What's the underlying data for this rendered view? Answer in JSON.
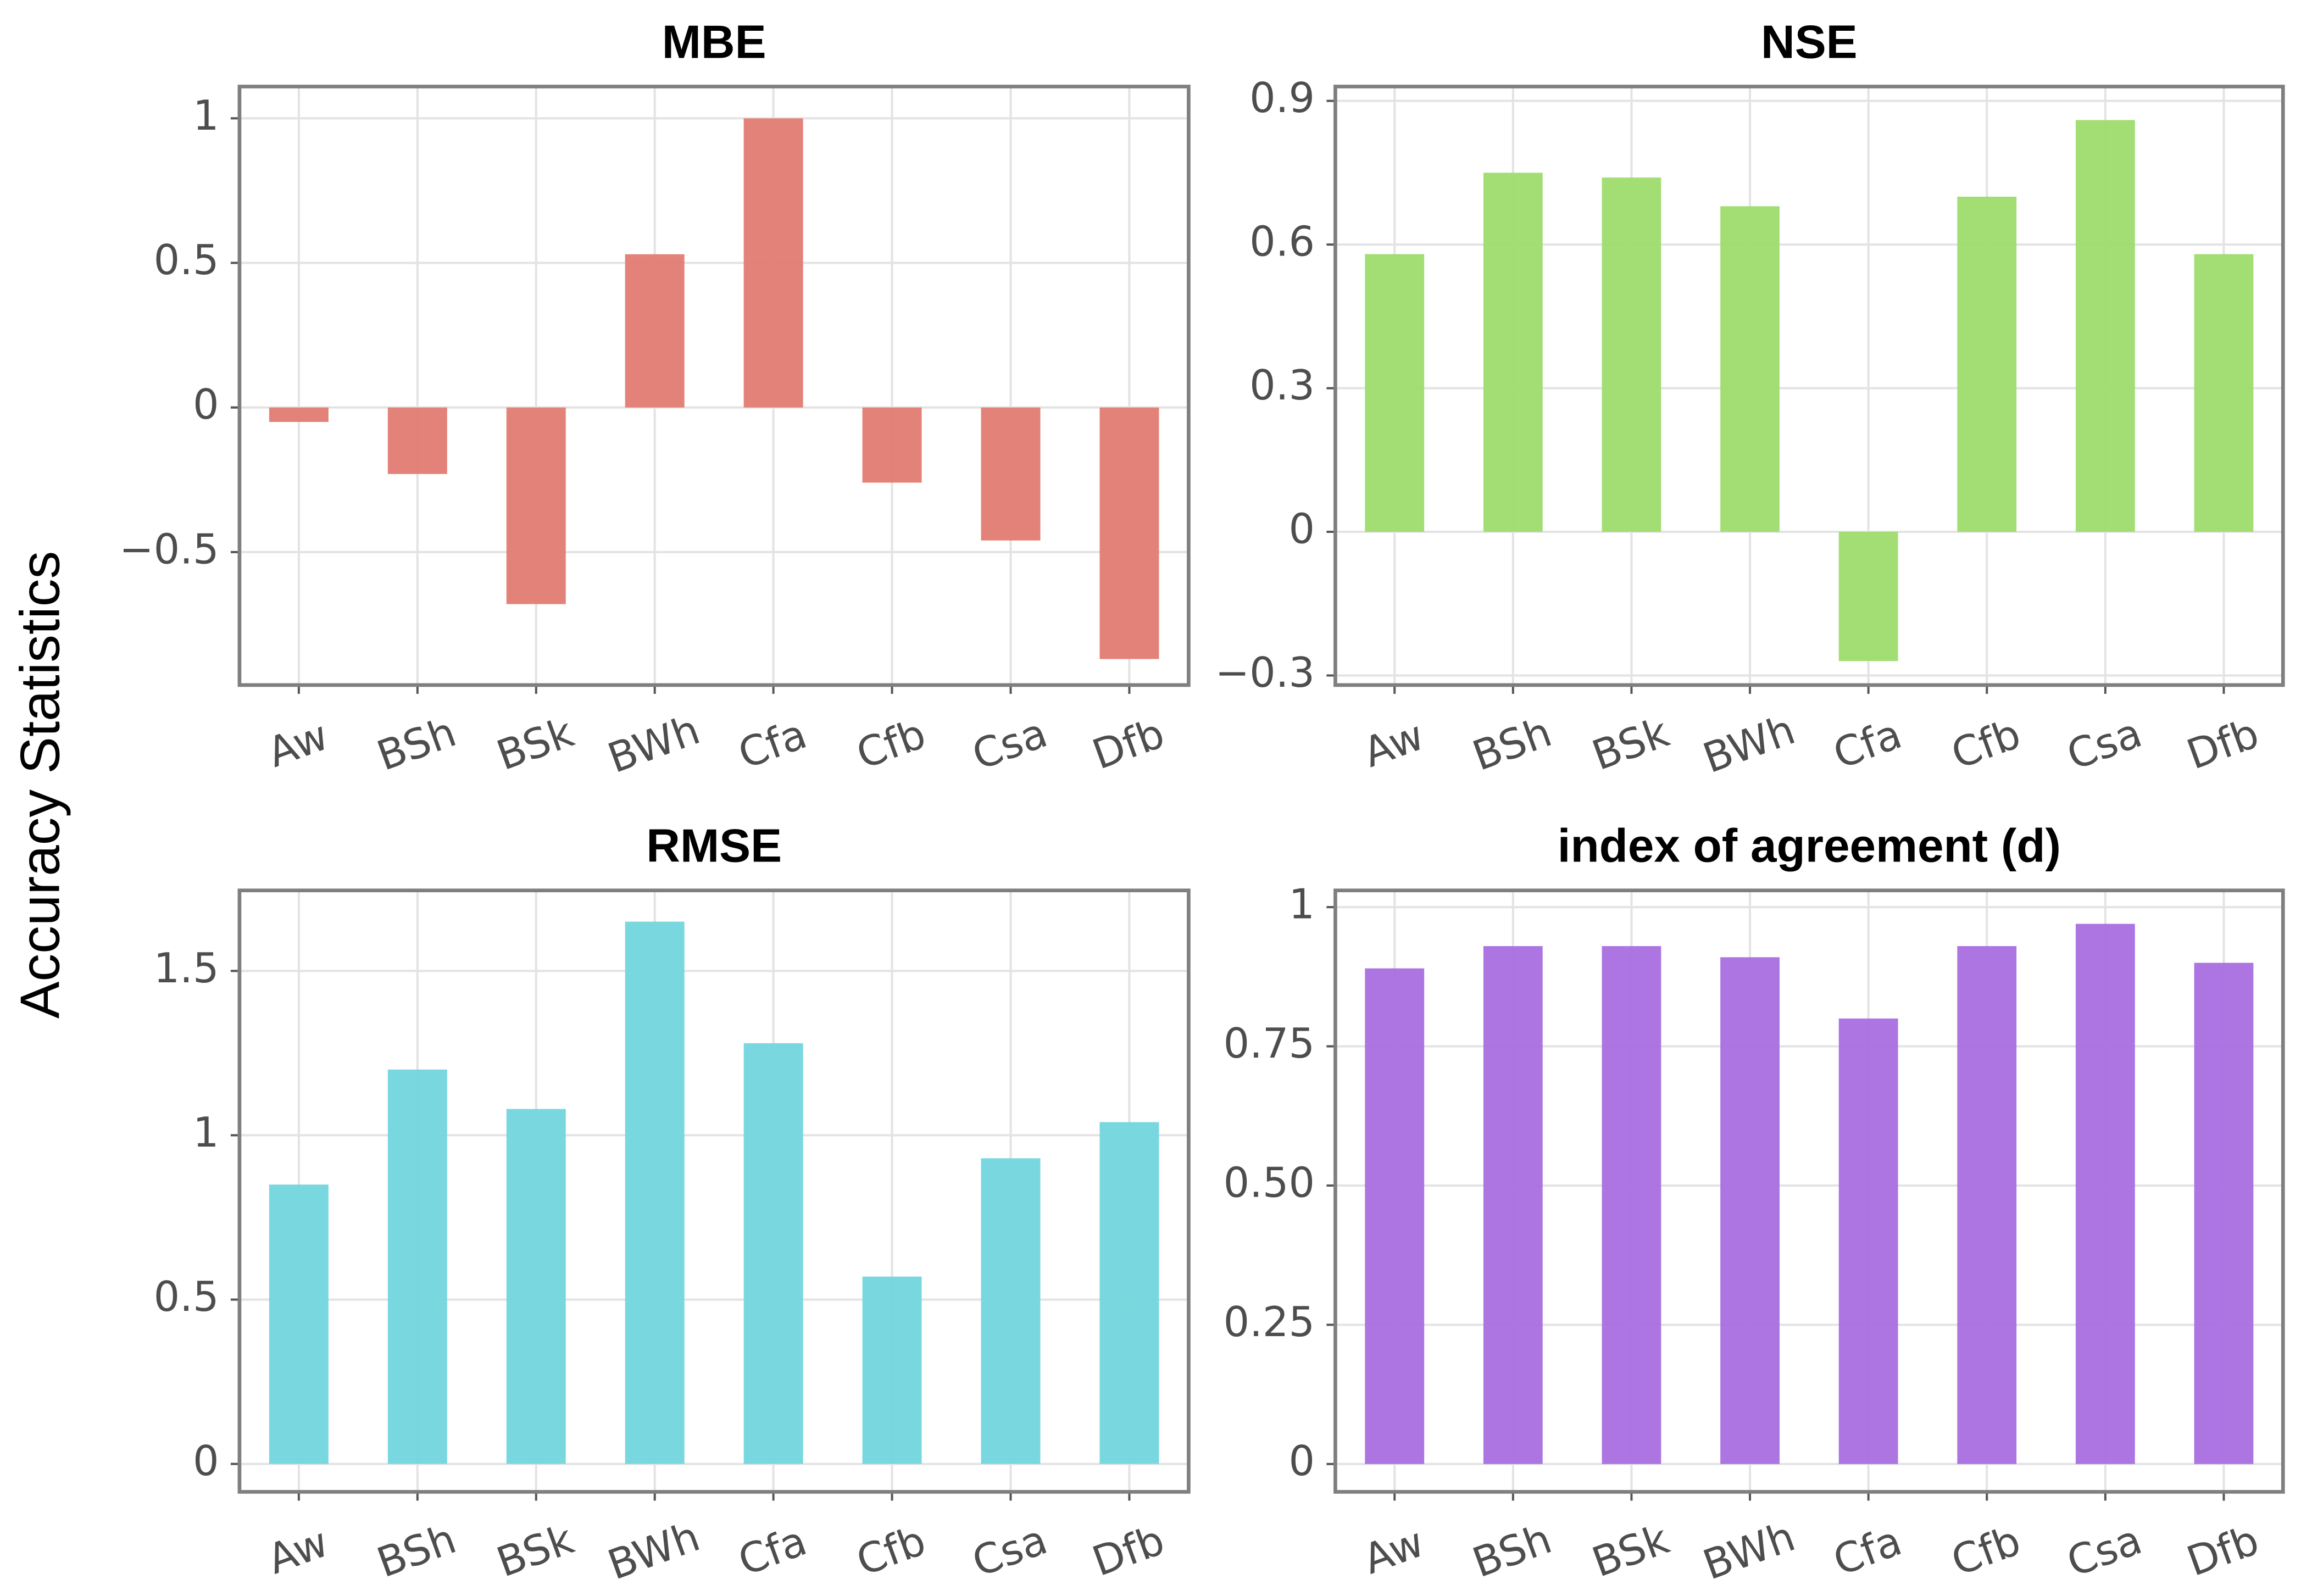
{
  "y_axis_label": "Accuracy Statistics",
  "chart_data": [
    {
      "type": "bar",
      "title": "MBE",
      "categories": [
        "Aw",
        "BSh",
        "BSk",
        "BWh",
        "Cfa",
        "Cfb",
        "Csa",
        "Dfb"
      ],
      "values": [
        -0.05,
        -0.23,
        -0.68,
        0.53,
        1.0,
        -0.26,
        -0.46,
        -0.87
      ],
      "color": "#e07b72",
      "ylim": [
        -0.96,
        1.11
      ],
      "yticks": [
        {
          "value": -0.5,
          "label": "−0.5"
        },
        0,
        0.5,
        1
      ],
      "grid": true
    },
    {
      "type": "bar",
      "title": "NSE",
      "categories": [
        "Aw",
        "BSh",
        "BSk",
        "BWh",
        "Cfa",
        "Cfb",
        "Csa",
        "Dfb"
      ],
      "values": [
        0.58,
        0.75,
        0.74,
        0.68,
        -0.27,
        0.7,
        0.86,
        0.58
      ],
      "color": "#9edc6e",
      "ylim": [
        -0.32,
        0.93
      ],
      "yticks": [
        {
          "value": -0.3,
          "label": "−0.3"
        },
        0,
        0.3,
        0.6,
        0.9
      ],
      "grid": true
    },
    {
      "type": "bar",
      "title": "RMSE",
      "categories": [
        "Aw",
        "BSh",
        "BSk",
        "BWh",
        "Cfa",
        "Cfb",
        "Csa",
        "Dfb"
      ],
      "values": [
        0.85,
        1.2,
        1.08,
        1.65,
        1.28,
        0.57,
        0.93,
        1.04
      ],
      "color": "#72d6dd",
      "ylim": [
        -0.085,
        1.745
      ],
      "yticks": [
        0,
        0.5,
        1,
        1.5
      ],
      "grid": true
    },
    {
      "type": "bar",
      "title": "index of agreement (d)",
      "categories": [
        "Aw",
        "BSh",
        "BSk",
        "BWh",
        "Cfa",
        "Cfb",
        "Csa",
        "Dfb"
      ],
      "values": [
        0.89,
        0.93,
        0.93,
        0.91,
        0.8,
        0.93,
        0.97,
        0.9
      ],
      "color": "#a86ee0",
      "ylim": [
        -0.05,
        1.03
      ],
      "yticks": [
        0,
        0.25,
        {
          "value": 0.5,
          "label": "0.50"
        },
        0.75,
        1
      ],
      "grid": true
    }
  ]
}
